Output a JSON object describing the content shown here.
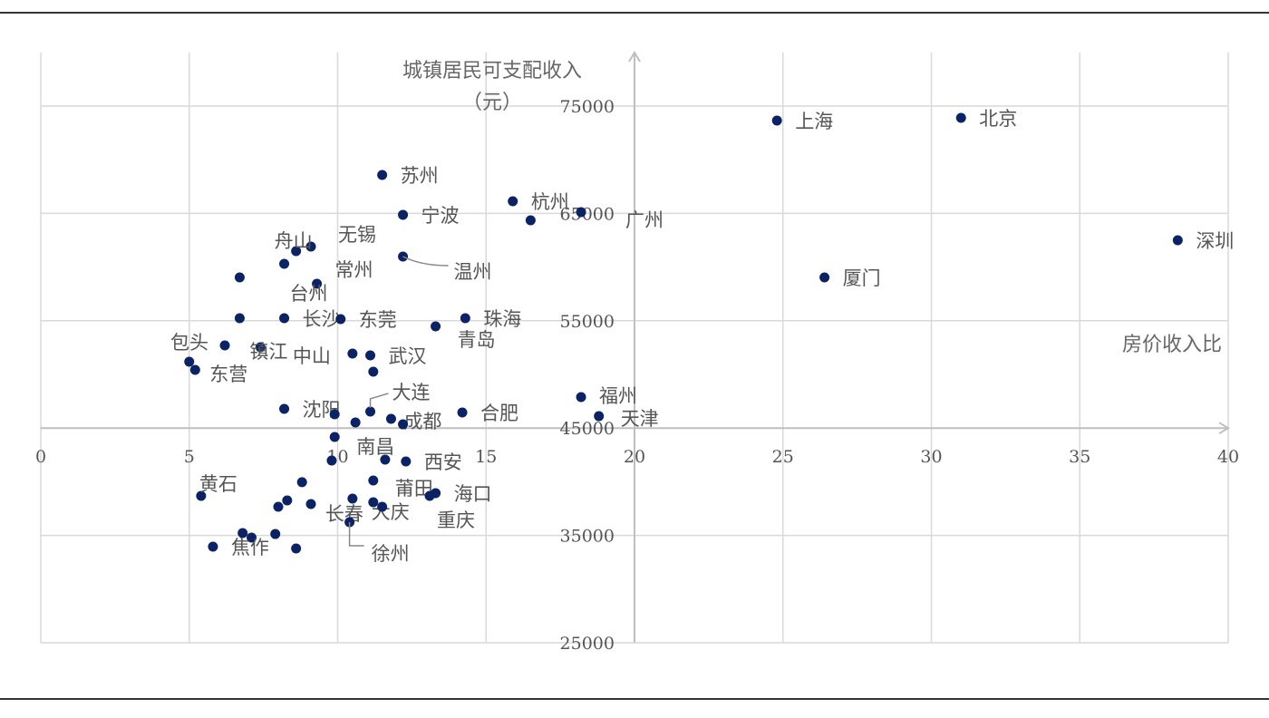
{
  "chart_data": {
    "type": "scatter",
    "title": "",
    "xlabel": "房价收入比",
    "ylabel": "城镇居民可支配收入",
    "ylabel_unit": "（元）",
    "xlim": [
      0,
      40
    ],
    "ylim": [
      25000,
      75000
    ],
    "x_axis_crosses_y": 45000,
    "y_axis_crosses_x": 20,
    "xticks": [
      0,
      5,
      10,
      15,
      20,
      25,
      30,
      35,
      40
    ],
    "yticks": [
      25000,
      35000,
      45000,
      55000,
      65000,
      75000
    ],
    "grid": true,
    "marker_color": "#0b2265",
    "points": [
      {
        "label": "上海",
        "x": 24.8,
        "y": 73650
      },
      {
        "label": "北京",
        "x": 31.0,
        "y": 73900
      },
      {
        "label": "深圳",
        "x": 38.3,
        "y": 62500
      },
      {
        "label": "厦门",
        "x": 26.4,
        "y": 59040
      },
      {
        "label": "福州",
        "x": 18.2,
        "y": 47890
      },
      {
        "label": "天津",
        "x": 18.8,
        "y": 46110
      },
      {
        "label": "苏州",
        "x": 11.5,
        "y": 68580
      },
      {
        "label": "杭州",
        "x": 15.9,
        "y": 66130
      },
      {
        "label": "",
        "x": 16.5,
        "y": 64360
      },
      {
        "label": "广州",
        "x": 18.2,
        "y": 65120
      },
      {
        "label": "宁波",
        "x": 12.2,
        "y": 64870
      },
      {
        "label": "无锡",
        "x": 9.1,
        "y": 61910
      },
      {
        "label": "舟山",
        "x": 8.6,
        "y": 61490
      },
      {
        "label": "常州",
        "x": 8.2,
        "y": 60300
      },
      {
        "label": "温州",
        "x": 12.2,
        "y": 60980
      },
      {
        "label": "",
        "x": 6.7,
        "y": 59040
      },
      {
        "label": "台州",
        "x": 9.3,
        "y": 58450
      },
      {
        "label": "",
        "x": 6.7,
        "y": 55240
      },
      {
        "label": "长沙",
        "x": 8.2,
        "y": 55240
      },
      {
        "label": "东莞",
        "x": 10.1,
        "y": 55150
      },
      {
        "label": "青岛",
        "x": 13.3,
        "y": 54480
      },
      {
        "label": "珠海",
        "x": 14.3,
        "y": 55240
      },
      {
        "label": "包头",
        "x": 6.2,
        "y": 52700
      },
      {
        "label": "镇江",
        "x": 7.4,
        "y": 52530
      },
      {
        "label": "中山",
        "x": 10.5,
        "y": 51940
      },
      {
        "label": "武汉",
        "x": 11.1,
        "y": 51770
      },
      {
        "label": "",
        "x": 11.2,
        "y": 50250
      },
      {
        "label": "",
        "x": 5.0,
        "y": 51180
      },
      {
        "label": "东营",
        "x": 5.2,
        "y": 50420
      },
      {
        "label": "沈阳",
        "x": 8.2,
        "y": 46790
      },
      {
        "label": "",
        "x": 9.9,
        "y": 46280
      },
      {
        "label": "",
        "x": 10.6,
        "y": 45520
      },
      {
        "label": "大连",
        "x": 11.1,
        "y": 46540
      },
      {
        "label": "成都",
        "x": 11.8,
        "y": 45860
      },
      {
        "label": "",
        "x": 12.2,
        "y": 45350
      },
      {
        "label": "合肥",
        "x": 14.2,
        "y": 46450
      },
      {
        "label": "南昌",
        "x": 9.9,
        "y": 44170
      },
      {
        "label": "",
        "x": 9.8,
        "y": 41980
      },
      {
        "label": "",
        "x": 11.6,
        "y": 42060
      },
      {
        "label": "西安",
        "x": 12.3,
        "y": 41890
      },
      {
        "label": "莆田",
        "x": 11.2,
        "y": 40120
      },
      {
        "label": "海口",
        "x": 13.3,
        "y": 38940
      },
      {
        "label": "重庆",
        "x": 13.1,
        "y": 38680
      },
      {
        "label": "黄石",
        "x": 5.4,
        "y": 38680
      },
      {
        "label": "",
        "x": 8.3,
        "y": 38260
      },
      {
        "label": "",
        "x": 8.0,
        "y": 37670
      },
      {
        "label": "",
        "x": 9.1,
        "y": 37920
      },
      {
        "label": "",
        "x": 8.8,
        "y": 39960
      },
      {
        "label": "长春",
        "x": 10.5,
        "y": 38430
      },
      {
        "label": "大庆",
        "x": 11.2,
        "y": 38090
      },
      {
        "label": "",
        "x": 11.5,
        "y": 37670
      },
      {
        "label": "徐州",
        "x": 10.4,
        "y": 36230
      },
      {
        "label": "",
        "x": 6.8,
        "y": 35220
      },
      {
        "label": "",
        "x": 7.1,
        "y": 34800
      },
      {
        "label": "",
        "x": 7.9,
        "y": 35130
      },
      {
        "label": "焦作",
        "x": 5.8,
        "y": 33950
      },
      {
        "label": "",
        "x": 8.6,
        "y": 33780
      }
    ]
  }
}
